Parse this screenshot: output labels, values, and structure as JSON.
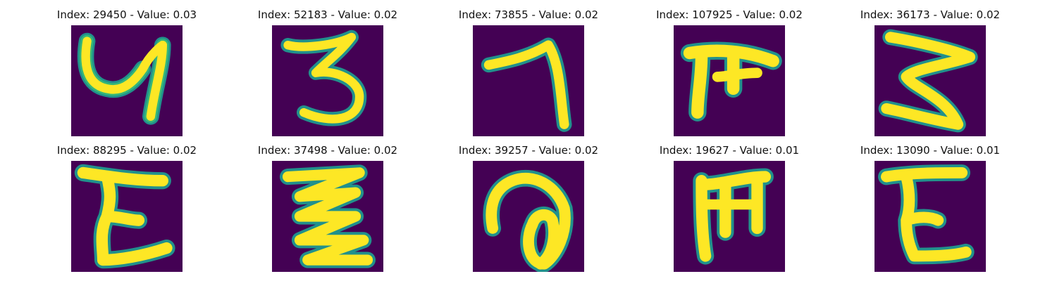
{
  "colors": {
    "background": "#440154",
    "stroke_core": "#fde725",
    "stroke_mid": "#35b779",
    "stroke_edge": "#21918c"
  },
  "panels": [
    {
      "title": "Index: 29450 - Value: 0.03",
      "glyph": "handwritten-y-like-character"
    },
    {
      "title": "Index: 52183 - Value: 0.02",
      "glyph": "handwritten-3-like-character"
    },
    {
      "title": "Index: 73855 - Value: 0.02",
      "glyph": "handwritten-7-like-character"
    },
    {
      "title": "Index: 107925 - Value: 0.02",
      "glyph": "handwritten-pi-like-character"
    },
    {
      "title": "Index: 36173 - Value: 0.02",
      "glyph": "handwritten-3-like-character"
    },
    {
      "title": "Index: 88295 - Value: 0.02",
      "glyph": "handwritten-E-like-character"
    },
    {
      "title": "Index: 37498 - Value: 0.02",
      "glyph": "handwritten-zigzag-character"
    },
    {
      "title": "Index: 39257 - Value: 0.02",
      "glyph": "handwritten-a-like-character"
    },
    {
      "title": "Index: 19627 - Value: 0.01",
      "glyph": "handwritten-m-like-character"
    },
    {
      "title": "Index: 13090 - Value: 0.01",
      "glyph": "handwritten-E-like-character"
    }
  ]
}
